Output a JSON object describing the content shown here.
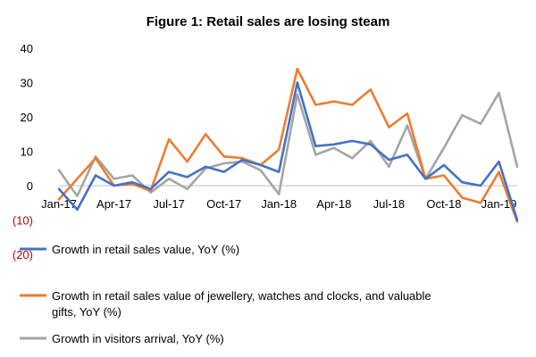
{
  "chart_data": {
    "type": "line",
    "title": "Figure 1: Retail sales are losing steam",
    "xlabel": "",
    "ylabel": "",
    "ylim": [
      -20,
      40
    ],
    "yticks": [
      40,
      30,
      20,
      10,
      0,
      -10,
      -20
    ],
    "ytick_labels": [
      "40",
      "30",
      "20",
      "10",
      "0",
      "(10)",
      "(20)"
    ],
    "x": [
      "Jan-17",
      "Feb-17",
      "Mar-17",
      "Apr-17",
      "May-17",
      "Jun-17",
      "Jul-17",
      "Aug-17",
      "Sep-17",
      "Oct-17",
      "Nov-17",
      "Dec-17",
      "Jan-18",
      "Feb-18",
      "Mar-18",
      "Apr-18",
      "May-18",
      "Jun-18",
      "Jul-18",
      "Aug-18",
      "Sep-18",
      "Oct-18",
      "Nov-18",
      "Dec-18",
      "Jan-19",
      "Feb-19"
    ],
    "xtick_labels": [
      "Jan-17",
      "Apr-17",
      "Jul-17",
      "Oct-17",
      "Jan-18",
      "Apr-18",
      "Jul-18",
      "Oct-18",
      "Jan-19"
    ],
    "grid": false,
    "legend_position": "bottom",
    "series": [
      {
        "name": "Growth in retail sales value, YoY (%)",
        "color": "#4472c4",
        "values": [
          -1,
          -7,
          3,
          0,
          1,
          -1,
          4,
          2.5,
          5.5,
          4,
          7.5,
          6,
          4,
          30,
          11.5,
          12,
          13,
          12,
          7.5,
          9,
          2,
          6,
          1,
          0,
          7,
          -10
        ]
      },
      {
        "name": "Growth in retail sales value of jewellery, watches and clocks, and valuable gifts, YoY (%)",
        "color": "#ed7d31",
        "values": [
          -4,
          2,
          8,
          0,
          0.5,
          -1.5,
          13.5,
          7,
          15,
          8.5,
          8,
          6,
          10.5,
          34,
          23.5,
          24.5,
          23.5,
          28,
          17,
          21,
          2,
          3,
          -3.5,
          -5,
          4,
          -10.5
        ]
      },
      {
        "name": "Growth in visitors arrival, YoY (%)",
        "color": "#a5a5a5",
        "values": [
          4.5,
          -3,
          8.5,
          2,
          3,
          -2,
          2,
          -1,
          5,
          6.5,
          7,
          4.5,
          -2.5,
          26.5,
          9,
          11,
          8,
          13,
          5.5,
          17.5,
          2,
          11,
          20.5,
          18,
          27,
          5.5
        ]
      }
    ]
  }
}
